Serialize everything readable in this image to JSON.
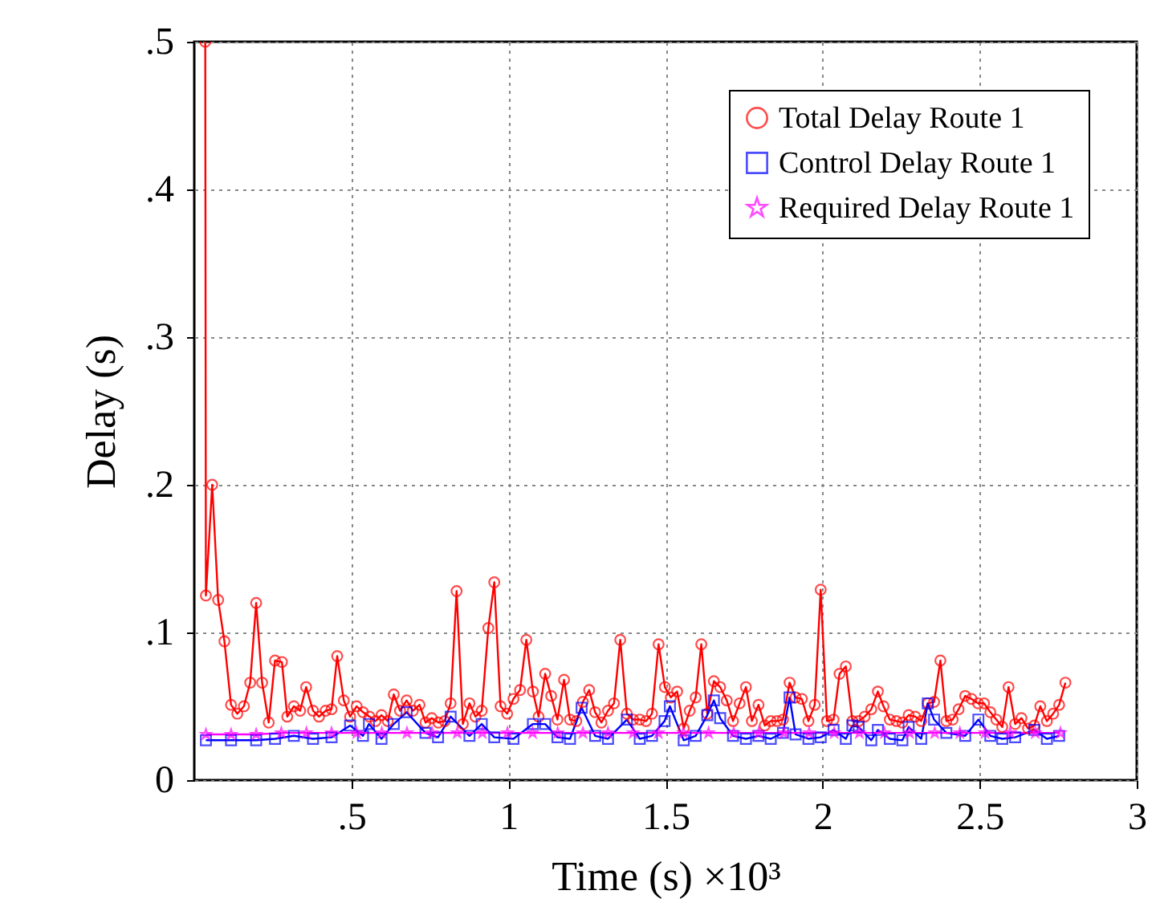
{
  "chart_data": {
    "type": "line",
    "xlabel": "Time (s) ×10³",
    "ylabel": "Delay (s)",
    "xlim": [
      0,
      3
    ],
    "ylim": [
      0,
      0.5
    ],
    "xticks": [
      {
        "value": 0.5,
        "label": ".5"
      },
      1,
      {
        "value": 1.5,
        "label": "1.5"
      },
      2,
      {
        "value": 2.5,
        "label": "2.5"
      },
      3
    ],
    "yticks": [
      0,
      {
        "value": 0.1,
        "label": ".1"
      },
      {
        "value": 0.2,
        "label": ".2"
      },
      {
        "value": 0.3,
        "label": ".3"
      },
      {
        "value": 0.4,
        "label": ".4"
      },
      {
        "value": 0.5,
        "label": ".5"
      }
    ],
    "grid": true,
    "legend": "top right",
    "line_style": "solid",
    "series": [
      {
        "name": "Total Delay Route 1",
        "color": "#ff0000",
        "marker": "circle",
        "x": [
          0.035,
          0.037,
          0.057,
          0.076,
          0.096,
          0.117,
          0.137,
          0.158,
          0.178,
          0.197,
          0.216,
          0.237,
          0.257,
          0.279,
          0.296,
          0.317,
          0.337,
          0.356,
          0.378,
          0.397,
          0.418,
          0.437,
          0.455,
          0.476,
          0.496,
          0.517,
          0.537,
          0.558,
          0.577,
          0.596,
          0.616,
          0.635,
          0.655,
          0.676,
          0.696,
          0.717,
          0.736,
          0.756,
          0.777,
          0.797,
          0.816,
          0.835,
          0.855,
          0.876,
          0.895,
          0.915,
          0.936,
          0.955,
          0.975,
          0.996,
          1.016,
          1.037,
          1.057,
          1.078,
          1.096,
          1.117,
          1.136,
          1.156,
          1.177,
          1.196,
          1.216,
          1.237,
          1.257,
          1.276,
          1.296,
          1.317,
          1.336,
          1.356,
          1.377,
          1.397,
          1.418,
          1.438,
          1.457,
          1.478,
          1.498,
          1.517,
          1.537,
          1.558,
          1.577,
          1.596,
          1.614,
          1.633,
          1.654,
          1.674,
          1.695,
          1.715,
          1.736,
          1.756,
          1.775,
          1.796,
          1.816,
          1.835,
          1.855,
          1.874,
          1.895,
          1.914,
          1.934,
          1.955,
          1.975,
          1.994,
          2.014,
          2.035,
          2.054,
          2.074,
          2.095,
          2.115,
          2.134,
          2.155,
          2.176,
          2.194,
          2.214,
          2.235,
          2.254,
          2.274,
          2.295,
          2.314,
          2.335,
          2.355,
          2.375,
          2.394,
          2.414,
          2.433,
          2.454,
          2.474,
          2.495,
          2.514,
          2.534,
          2.553,
          2.572,
          2.592,
          2.613,
          2.633,
          2.654,
          2.674,
          2.693,
          2.714,
          2.734,
          2.753,
          2.773
        ],
        "values": [
          0.5,
          0.125,
          0.2,
          0.122,
          0.094,
          0.051,
          0.045,
          0.05,
          0.066,
          0.12,
          0.066,
          0.039,
          0.081,
          0.08,
          0.043,
          0.05,
          0.047,
          0.063,
          0.047,
          0.043,
          0.047,
          0.048,
          0.084,
          0.054,
          0.043,
          0.05,
          0.046,
          0.043,
          0.04,
          0.044,
          0.04,
          0.058,
          0.047,
          0.054,
          0.047,
          0.051,
          0.039,
          0.042,
          0.039,
          0.04,
          0.052,
          0.128,
          0.038,
          0.052,
          0.043,
          0.047,
          0.103,
          0.134,
          0.05,
          0.045,
          0.055,
          0.061,
          0.095,
          0.06,
          0.043,
          0.072,
          0.057,
          0.041,
          0.068,
          0.041,
          0.04,
          0.053,
          0.061,
          0.046,
          0.039,
          0.047,
          0.052,
          0.095,
          0.045,
          0.041,
          0.041,
          0.04,
          0.045,
          0.092,
          0.063,
          0.056,
          0.06,
          0.035,
          0.047,
          0.056,
          0.092,
          0.045,
          0.067,
          0.063,
          0.054,
          0.04,
          0.052,
          0.063,
          0.04,
          0.051,
          0.037,
          0.04,
          0.04,
          0.041,
          0.066,
          0.056,
          0.055,
          0.04,
          0.051,
          0.129,
          0.04,
          0.041,
          0.072,
          0.077,
          0.04,
          0.04,
          0.043,
          0.048,
          0.06,
          0.05,
          0.041,
          0.04,
          0.039,
          0.044,
          0.043,
          0.04,
          0.052,
          0.053,
          0.081,
          0.04,
          0.041,
          0.048,
          0.057,
          0.055,
          0.052,
          0.052,
          0.046,
          0.041,
          0.036,
          0.063,
          0.038,
          0.042,
          0.035,
          0.037,
          0.05,
          0.04,
          0.045,
          0.051,
          0.066
        ]
      },
      {
        "name": "Control Delay Route 1",
        "color": "#0000ff",
        "marker": "square",
        "x": [
          0.037,
          0.117,
          0.197,
          0.257,
          0.317,
          0.378,
          0.437,
          0.496,
          0.537,
          0.556,
          0.596,
          0.635,
          0.676,
          0.736,
          0.776,
          0.816,
          0.876,
          0.915,
          0.955,
          1.016,
          1.078,
          1.117,
          1.156,
          1.196,
          1.233,
          1.276,
          1.317,
          1.377,
          1.418,
          1.457,
          1.497,
          1.514,
          1.558,
          1.596,
          1.633,
          1.654,
          1.674,
          1.715,
          1.756,
          1.796,
          1.835,
          1.874,
          1.895,
          1.914,
          1.955,
          1.994,
          2.035,
          2.074,
          2.095,
          2.115,
          2.155,
          2.176,
          2.214,
          2.254,
          2.274,
          2.314,
          2.335,
          2.355,
          2.394,
          2.454,
          2.496,
          2.534,
          2.572,
          2.613,
          2.674,
          2.714,
          2.753
        ],
        "values": [
          0.027,
          0.027,
          0.027,
          0.028,
          0.03,
          0.028,
          0.029,
          0.037,
          0.03,
          0.038,
          0.028,
          0.038,
          0.046,
          0.032,
          0.029,
          0.043,
          0.03,
          0.038,
          0.029,
          0.028,
          0.038,
          0.038,
          0.029,
          0.028,
          0.049,
          0.03,
          0.028,
          0.041,
          0.028,
          0.03,
          0.04,
          0.05,
          0.027,
          0.03,
          0.044,
          0.054,
          0.042,
          0.03,
          0.028,
          0.03,
          0.028,
          0.032,
          0.056,
          0.031,
          0.028,
          0.029,
          0.034,
          0.028,
          0.037,
          0.036,
          0.027,
          0.034,
          0.028,
          0.027,
          0.036,
          0.028,
          0.052,
          0.041,
          0.032,
          0.03,
          0.041,
          0.03,
          0.028,
          0.029,
          0.034,
          0.028,
          0.03
        ]
      },
      {
        "name": "Required Delay Route 1",
        "color": "#ff00ff",
        "marker": "star",
        "x": [
          0.037,
          0.117,
          0.197,
          0.277,
          0.357,
          0.437,
          0.517,
          0.597,
          0.677,
          0.757,
          0.837,
          0.917,
          0.997,
          1.077,
          1.157,
          1.237,
          1.317,
          1.397,
          1.477,
          1.557,
          1.637,
          1.717,
          1.797,
          1.877,
          1.957,
          2.037,
          2.117,
          2.197,
          2.277,
          2.357,
          2.437,
          2.517,
          2.597,
          2.677,
          2.757
        ],
        "values": [
          0.031,
          0.031,
          0.031,
          0.032,
          0.032,
          0.032,
          0.032,
          0.032,
          0.032,
          0.032,
          0.032,
          0.032,
          0.032,
          0.032,
          0.032,
          0.032,
          0.032,
          0.032,
          0.032,
          0.032,
          0.032,
          0.032,
          0.032,
          0.032,
          0.032,
          0.032,
          0.032,
          0.032,
          0.032,
          0.032,
          0.032,
          0.032,
          0.032,
          0.032,
          0.032
        ]
      }
    ]
  }
}
